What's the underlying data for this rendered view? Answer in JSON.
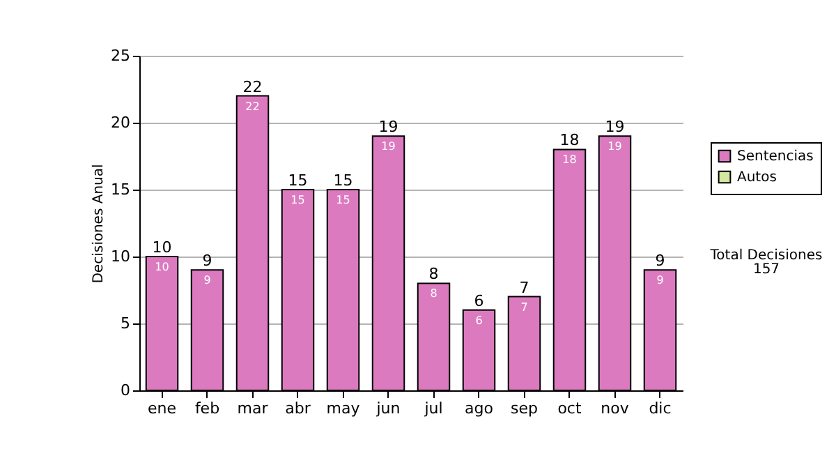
{
  "chart_data": {
    "type": "bar",
    "ylabel": "Decisiones Anual",
    "categories": [
      "ene",
      "feb",
      "mar",
      "abr",
      "may",
      "jun",
      "jul",
      "ago",
      "sep",
      "oct",
      "nov",
      "dic"
    ],
    "series": [
      {
        "name": "Sentencias",
        "color": "#dc7ac0",
        "values": [
          10,
          9,
          22,
          15,
          15,
          19,
          8,
          6,
          7,
          18,
          19,
          9
        ],
        "value_labels": [
          "10",
          "9",
          "22",
          "15",
          "15",
          "19",
          "8",
          "6",
          "7",
          "18",
          "19",
          "9"
        ]
      },
      {
        "name": "Autos",
        "color": "#d4e8a0",
        "values": [
          null,
          null,
          null,
          null,
          null,
          null,
          null,
          null,
          null,
          null,
          null,
          null
        ]
      }
    ],
    "stacked": true,
    "totals": [
      "10",
      "9",
      "22",
      "15",
      "15",
      "19",
      "8",
      "6",
      "7",
      "18",
      "19",
      "9"
    ],
    "ylim": [
      0,
      25
    ],
    "yticks": [
      0,
      5,
      10,
      15,
      20,
      25
    ],
    "grid": "y",
    "legend": "right",
    "annotations": [
      "Total Decisiones",
      "157"
    ]
  }
}
